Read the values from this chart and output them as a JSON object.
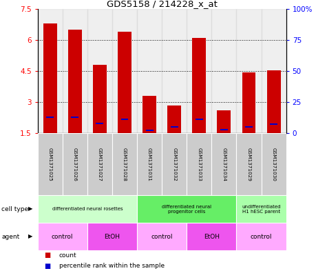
{
  "title": "GDS5158 / 214228_x_at",
  "samples": [
    "GSM1371025",
    "GSM1371026",
    "GSM1371027",
    "GSM1371028",
    "GSM1371031",
    "GSM1371032",
    "GSM1371033",
    "GSM1371034",
    "GSM1371029",
    "GSM1371030"
  ],
  "counts": [
    6.8,
    6.5,
    4.8,
    6.4,
    3.3,
    2.85,
    6.1,
    2.6,
    4.45,
    4.55
  ],
  "percentile_values": [
    13,
    13,
    8,
    11,
    2,
    5,
    11,
    3,
    5,
    7
  ],
  "bar_base": 1.5,
  "ylim_left": [
    1.5,
    7.5
  ],
  "yticks_left": [
    1.5,
    3.0,
    4.5,
    6.0,
    7.5
  ],
  "yticks_left_labels": [
    "1.5",
    "3",
    "4.5",
    "6",
    "7.5"
  ],
  "yticks_right": [
    0,
    25,
    50,
    75,
    100
  ],
  "yticks_right_labels": [
    "0",
    "25",
    "50",
    "75",
    "100%"
  ],
  "bar_color": "#cc0000",
  "percentile_color": "#0000cc",
  "bar_width": 0.55,
  "cell_type_groups": [
    {
      "label": "differentiated neural rosettes",
      "start": 0,
      "end": 3,
      "color": "#ccffcc"
    },
    {
      "label": "differentiated neural\nprogenitor cells",
      "start": 4,
      "end": 7,
      "color": "#66ee66"
    },
    {
      "label": "undifferentiated\nH1 hESC parent",
      "start": 8,
      "end": 9,
      "color": "#aaffaa"
    }
  ],
  "agent_groups": [
    {
      "label": "control",
      "start": 0,
      "end": 1,
      "color": "#ffaaff"
    },
    {
      "label": "EtOH",
      "start": 2,
      "end": 3,
      "color": "#ee55ee"
    },
    {
      "label": "control",
      "start": 4,
      "end": 5,
      "color": "#ffaaff"
    },
    {
      "label": "EtOH",
      "start": 6,
      "end": 7,
      "color": "#ee55ee"
    },
    {
      "label": "control",
      "start": 8,
      "end": 9,
      "color": "#ffaaff"
    }
  ],
  "bg_color": "#ffffff",
  "sample_bg": "#cccccc"
}
